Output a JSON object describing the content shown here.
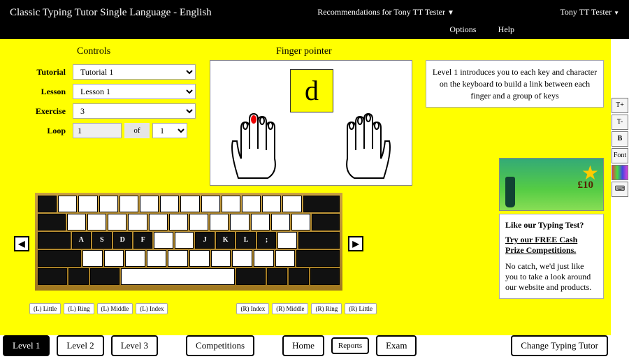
{
  "header": {
    "title": "Classic Typing Tutor Single Language - English",
    "recommendations": "Recommendations for Tony TT Tester",
    "user": "Tony TT Tester",
    "options": "Options",
    "help": "Help"
  },
  "controls": {
    "heading": "Controls",
    "tutorial_label": "Tutorial",
    "tutorial_value": "Tutorial 1",
    "lesson_label": "Lesson",
    "lesson_value": "Lesson 1",
    "exercise_label": "Exercise",
    "exercise_value": "3",
    "loop_label": "Loop",
    "loop_current": "1",
    "loop_of": "of",
    "loop_total": "1"
  },
  "finger": {
    "heading": "Finger pointer",
    "char": "d",
    "highlight_finger": "left-middle"
  },
  "info": {
    "text": "Level 1 introduces you to each key and character on the keyboard to build a link between each finger and a group of keys"
  },
  "promo": {
    "price": "£10",
    "heading": "Like our Typing Test?",
    "link": "Try our FREE Cash Prize Competitions.",
    "body": "No catch, we'd just like you to take a look around our website and products."
  },
  "finger_labels": {
    "l_little": "(L) Little",
    "l_ring": "(L) Ring",
    "l_middle": "(L) Middle",
    "l_index": "(L) Index",
    "r_index": "(R) Index",
    "r_middle": "(R) Middle",
    "r_ring": "(R) Ring",
    "r_little": "(R) Little"
  },
  "home_row": [
    "A",
    "S",
    "D",
    "F",
    "",
    "",
    "J",
    "K",
    "L",
    ";"
  ],
  "tabs": {
    "level1": "Level 1",
    "level2": "Level 2",
    "level3": "Level 3",
    "competitions": "Competitions",
    "home": "Home",
    "reports": "Reports",
    "exam": "Exam",
    "change": "Change Typing Tutor"
  },
  "tools": {
    "inc": "T+",
    "dec": "T-",
    "bold": "B",
    "font": "Font",
    "kb": "⌨"
  }
}
